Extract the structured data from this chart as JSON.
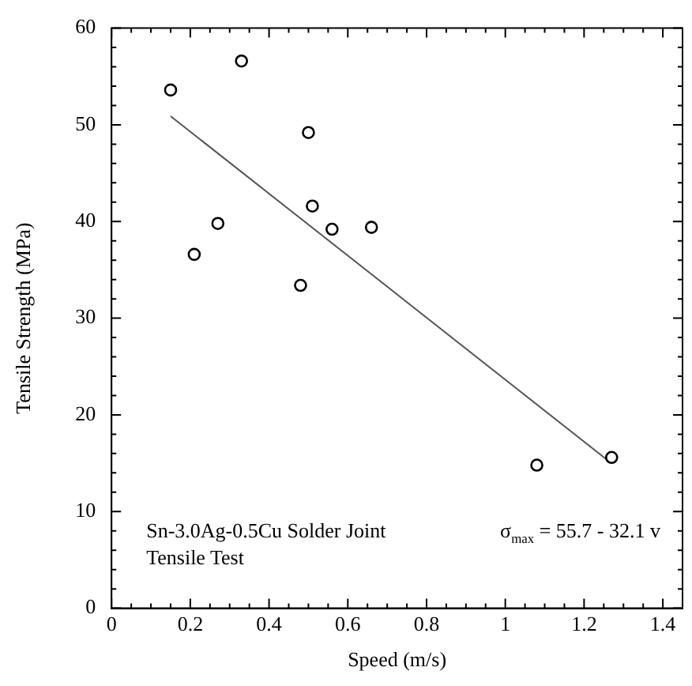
{
  "chart_data": {
    "type": "scatter",
    "xlabel": "Speed (m/s)",
    "ylabel": "Tensile Strength (MPa)",
    "series": [
      {
        "type": "scatter",
        "color": "#000000",
        "marker": "circle",
        "x": [
          0.15,
          0.21,
          0.27,
          0.33,
          0.48,
          0.5,
          0.51,
          0.56,
          0.66,
          1.08,
          1.27
        ],
        "values": [
          53.6,
          36.6,
          39.8,
          56.6,
          33.4,
          49.2,
          41.6,
          39.2,
          39.4,
          14.8,
          15.6
        ]
      },
      {
        "type": "line",
        "color": "#555555",
        "marker": "none",
        "line_style": "solid",
        "x": [
          0.15,
          1.26
        ],
        "values": [
          50.9,
          15.3
        ]
      }
    ],
    "xlim": [
      0,
      1.45
    ],
    "ylim": [
      0,
      60
    ],
    "xticks": [
      0,
      {
        "value": 0.05,
        "label": null
      },
      {
        "value": 0.1,
        "label": null
      },
      {
        "value": 0.15,
        "label": null
      },
      0.2,
      {
        "value": 0.25,
        "label": null
      },
      {
        "value": 0.3,
        "label": null
      },
      {
        "value": 0.35,
        "label": null
      },
      0.4,
      {
        "value": 0.45,
        "label": null
      },
      {
        "value": 0.5,
        "label": null
      },
      {
        "value": 0.55,
        "label": null
      },
      0.6,
      {
        "value": 0.65,
        "label": null
      },
      {
        "value": 0.7,
        "label": null
      },
      {
        "value": 0.75,
        "label": null
      },
      0.8,
      {
        "value": 0.85,
        "label": null
      },
      {
        "value": 0.9,
        "label": null
      },
      {
        "value": 0.95,
        "label": null
      },
      1,
      {
        "value": 1.05,
        "label": null
      },
      {
        "value": 1.1,
        "label": null
      },
      {
        "value": 1.15,
        "label": null
      },
      1.2,
      {
        "value": 1.25,
        "label": null
      },
      {
        "value": 1.3,
        "label": null
      },
      {
        "value": 1.35,
        "label": null
      },
      1.4
    ],
    "yticks": [
      0,
      {
        "value": 2,
        "label": null
      },
      {
        "value": 4,
        "label": null
      },
      {
        "value": 6,
        "label": null
      },
      {
        "value": 8,
        "label": null
      },
      10,
      {
        "value": 12,
        "label": null
      },
      {
        "value": 14,
        "label": null
      },
      {
        "value": 16,
        "label": null
      },
      {
        "value": 18,
        "label": null
      },
      20,
      {
        "value": 22,
        "label": null
      },
      {
        "value": 24,
        "label": null
      },
      {
        "value": 26,
        "label": null
      },
      {
        "value": 28,
        "label": null
      },
      30,
      {
        "value": 32,
        "label": null
      },
      {
        "value": 34,
        "label": null
      },
      {
        "value": 36,
        "label": null
      },
      {
        "value": 38,
        "label": null
      },
      40,
      {
        "value": 42,
        "label": null
      },
      {
        "value": 44,
        "label": null
      },
      {
        "value": 46,
        "label": null
      },
      {
        "value": 48,
        "label": null
      },
      50,
      {
        "value": 52,
        "label": null
      },
      {
        "value": 54,
        "label": null
      },
      {
        "value": 56,
        "label": null
      },
      {
        "value": 58,
        "label": null
      },
      60
    ],
    "annotations": [
      "Sn-3.0Ag-0.5Cu Solder Joint\nTensile Test",
      "σ$_{max}$ = 55.7 - 32.1 v"
    ],
    "grid": false,
    "legend": false
  }
}
